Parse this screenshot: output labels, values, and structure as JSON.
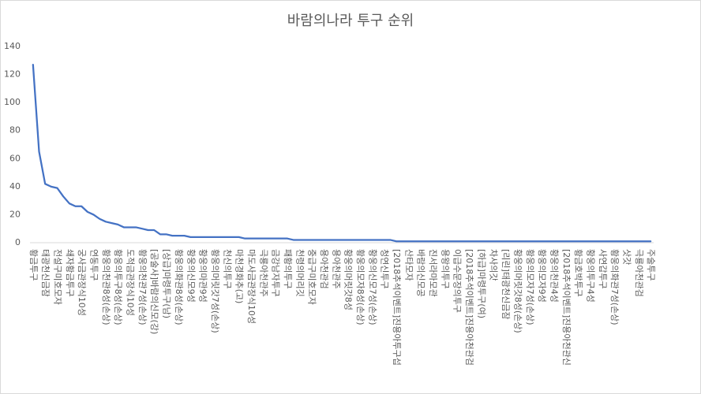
{
  "chart_data": {
    "type": "line",
    "title": "바람의나라 투구 순위",
    "categories": [
      "황금투구",
      null,
      "태광천신금잠",
      null,
      "전설구미호모자",
      null,
      "쇄자황금투구",
      null,
      "궁사금관장식10성",
      null,
      "연동투구",
      null,
      "황웅의천관8성(손상)",
      null,
      "황웅의투구8성(손상)",
      null,
      "도적금관장식10성",
      null,
      "황웅의천관7성(손상)",
      null,
      "[공술사]바람의신모(강)",
      null,
      "[상급]마령투구(남)",
      null,
      "황웅의화관8성(손상)",
      null,
      "황웅의신모9성",
      null,
      "황웅의마관9성",
      null,
      "황웅의머릿갓7성(손상)",
      null,
      "천신의투구",
      null,
      "마천경화추(고)",
      null,
      "마도사금관장식10성",
      null,
      "극룡아천관주",
      null,
      "금강남자투구",
      null,
      "패황의투구",
      null,
      "천령의머리깃",
      null,
      "중급구미호모자",
      null,
      "용아천관검",
      null,
      "용아천관주",
      null,
      "황웅의머릿갓8성",
      null,
      "황웅의모자8성(손상)",
      null,
      "황웅의신모7성(손상)",
      null,
      "청연신투구",
      null,
      "[2018추석이벤트]진용아투구섭",
      null,
      "산타모자",
      null,
      "바람의신모공",
      null,
      "진서라마모관",
      null,
      "용왕의투구",
      null,
      "이급수문장의투구",
      null,
      "[2018추석이벤트]진용아천관검",
      null,
      "[하급]마령투구(여)",
      null,
      "차사의갓",
      null,
      "[리린]태광천신금잠",
      null,
      "황웅의머릿갓8성(손상)",
      null,
      "황웅의모자7성(손상)",
      null,
      "황웅의모자9성",
      null,
      "황웅의천관4성",
      null,
      "[2018추석이벤트]진용아천관신",
      null,
      "황금호박투구",
      null,
      "황웅의투구4성",
      null,
      "사연갑투구",
      null,
      "황웅의화관7성(손상)",
      null,
      "삿갓",
      null,
      "극룡아천관검",
      null,
      "주술투구"
    ],
    "values": [
      127,
      65,
      42,
      40,
      39,
      33,
      28,
      26,
      26,
      22,
      20,
      17,
      15,
      14,
      13,
      11,
      11,
      11,
      10,
      9,
      9,
      6,
      6,
      5,
      5,
      5,
      4,
      4,
      4,
      4,
      4,
      4,
      4,
      4,
      4,
      3,
      3,
      3,
      3,
      3,
      3,
      3,
      3,
      2,
      2,
      2,
      2,
      2,
      2,
      2,
      2,
      2,
      2,
      2,
      2,
      2,
      2,
      2,
      2,
      2,
      1,
      1,
      1,
      1,
      1,
      1,
      1,
      1,
      1,
      1,
      1,
      1,
      1,
      1,
      1,
      1,
      1,
      1,
      1,
      1,
      1,
      1,
      1,
      1,
      1,
      1,
      1,
      1,
      1,
      1,
      1,
      1,
      1,
      1,
      1,
      1,
      1,
      1,
      1,
      1,
      1,
      1,
      1
    ],
    "color": "#4472c4",
    "ylim": [
      0,
      140
    ],
    "yticks": [
      0,
      20,
      40,
      60,
      80,
      100,
      120,
      140
    ],
    "grid": false
  }
}
